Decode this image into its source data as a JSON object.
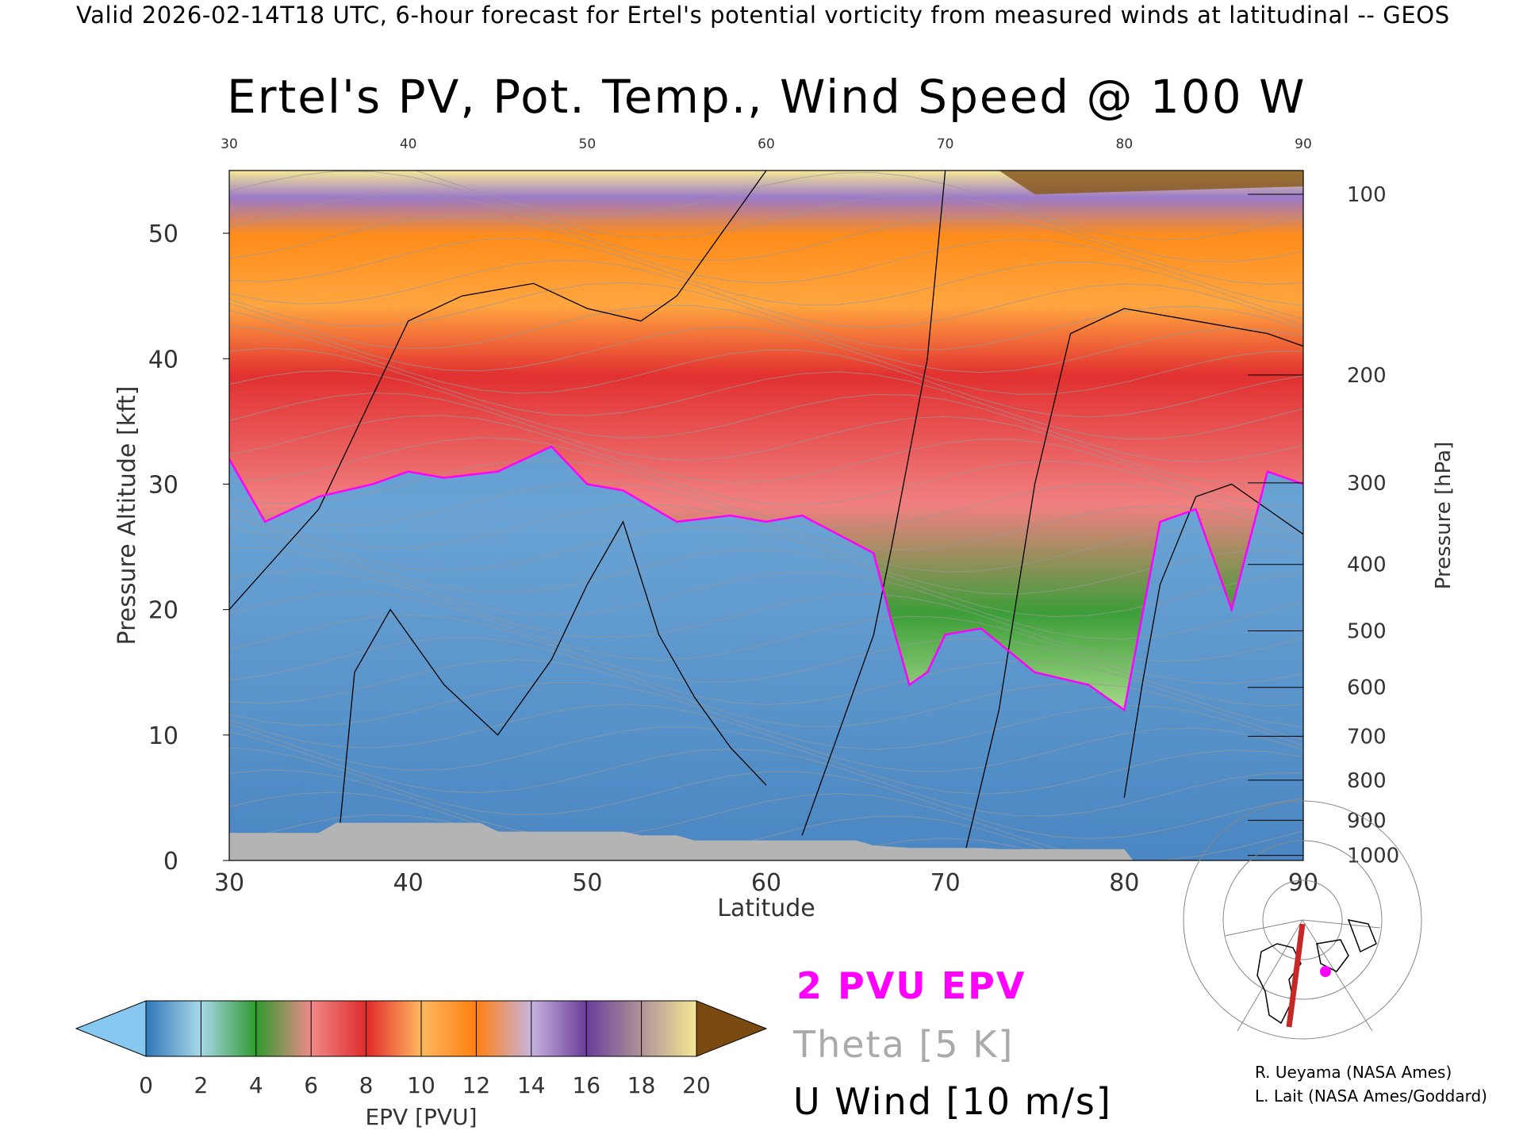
{
  "header": "Valid 2026-02-14T18 UTC, 6-hour forecast for Ertel's potential vorticity from measured winds at latitudinal -- GEOS",
  "title": "Ertel's PV, Pot. Temp., Wind Speed @ 100 W",
  "legend": {
    "epv_label": "2 PVU EPV",
    "theta_label": "Theta [5 K]",
    "wind_label": "U Wind [10 m/s]",
    "colors": {
      "epv": "#ff00ff",
      "theta": "#aaaaaa",
      "wind": "#000000"
    }
  },
  "colorbar": {
    "label": "EPV [PVU]",
    "ticks": [
      "0",
      "2",
      "4",
      "6",
      "8",
      "10",
      "12",
      "14",
      "16",
      "18",
      "20"
    ],
    "colors": [
      "#2f78b8",
      "#a9d8ea",
      "#2f9a2f",
      "#f08a8a",
      "#e02a2a",
      "#ff9f40",
      "#ff7f10",
      "#c8b4e0",
      "#6a3d9a",
      "#f5e896"
    ],
    "under_color": "#86c8f0",
    "over_color": "#7a4a10"
  },
  "credits": [
    "R. Ueyama (NASA Ames)",
    "L. Lait (NASA Ames/Goddard)"
  ],
  "map_icon": "north-polar-map-icon",
  "chart_data": {
    "type": "heatmap",
    "title": "Ertel's PV, Pot. Temp., Wind Speed @ 100 W",
    "xlabel": "Latitude",
    "ylabel": "Pressure Altitude [kft]",
    "ylabel_right": "Pressure [hPa]",
    "xlim": [
      30,
      90
    ],
    "ylim": [
      0,
      55
    ],
    "x_ticks": [
      30,
      40,
      50,
      60,
      70,
      80,
      90
    ],
    "y_ticks": [
      0,
      10,
      20,
      30,
      40,
      50
    ],
    "pressure_ticks": [
      {
        "label": "100",
        "kft": 53.1
      },
      {
        "label": "200",
        "kft": 38.7
      },
      {
        "label": "300",
        "kft": 30.1
      },
      {
        "label": "400",
        "kft": 23.6
      },
      {
        "label": "500",
        "kft": 18.3
      },
      {
        "label": "600",
        "kft": 13.8
      },
      {
        "label": "700",
        "kft": 9.9
      },
      {
        "label": "800",
        "kft": 6.4
      },
      {
        "label": "900",
        "kft": 3.2
      },
      {
        "label": "1000",
        "kft": 0.4
      }
    ],
    "tropopause_2pvu": {
      "lat": [
        30,
        32,
        35,
        38,
        40,
        42,
        45,
        48,
        50,
        52,
        55,
        58,
        60,
        62,
        64,
        66,
        67,
        68,
        69,
        70,
        72,
        75,
        78,
        80,
        82,
        84,
        86,
        88,
        90
      ],
      "kft": [
        32,
        27,
        29,
        30,
        31,
        30.5,
        31,
        33,
        30,
        29.5,
        27,
        27.5,
        27,
        27.5,
        26,
        24.5,
        19,
        14,
        15,
        18,
        18.5,
        15,
        14,
        12,
        27,
        28,
        20,
        31,
        30
      ]
    }
  }
}
